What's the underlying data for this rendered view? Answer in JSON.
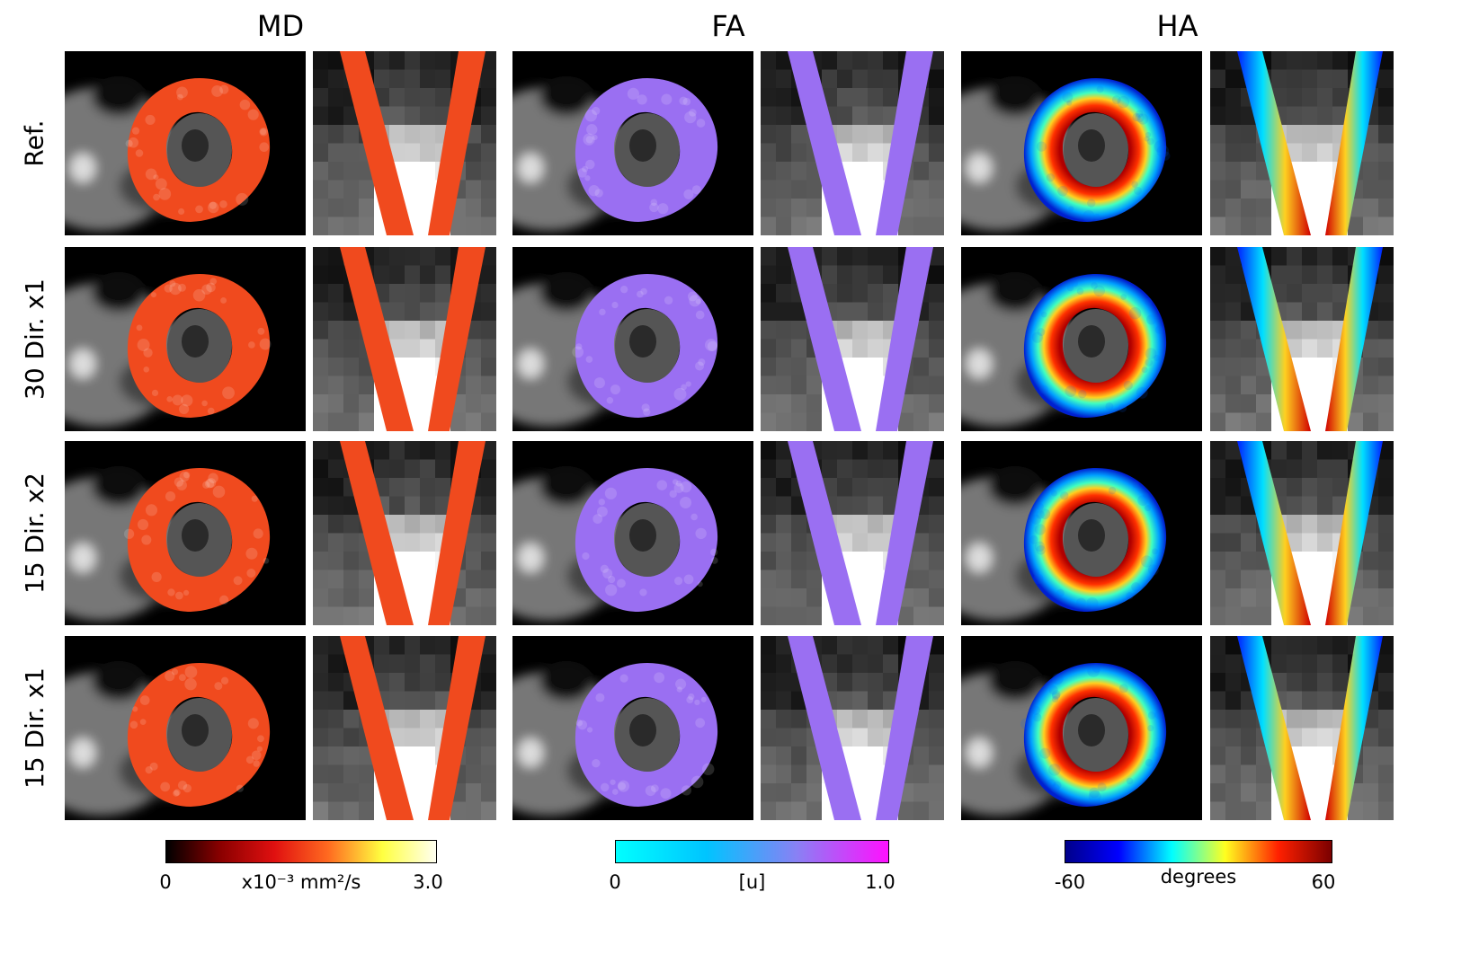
{
  "columns": [
    {
      "title": "MD",
      "ring_color": "#f04a1e",
      "cmap": "hot"
    },
    {
      "title": "FA",
      "ring_color": "#9a6ff2",
      "cmap": "cool"
    },
    {
      "title": "HA",
      "ring_color": "jet",
      "cmap": "jet"
    }
  ],
  "rows": [
    {
      "label": "Ref."
    },
    {
      "label": "30 Dir. x1"
    },
    {
      "label": "15 Dir. x2"
    },
    {
      "label": "15 Dir. x1"
    }
  ],
  "colorbars": [
    {
      "min": "0",
      "max": "3.0",
      "unit": "x10⁻³ mm²/s",
      "stops": [
        "#000000",
        "#8a0000",
        "#e01010",
        "#ff6a20",
        "#ffff40",
        "#fffff0"
      ]
    },
    {
      "min": "0",
      "max": "1.0",
      "unit": "[u]",
      "stops": [
        "#00ffff",
        "#00c4ff",
        "#8a80f4",
        "#ff10ff"
      ]
    },
    {
      "min": "-60",
      "max": "60",
      "unit": "degrees",
      "stops": [
        "#00008a",
        "#0000ff",
        "#00ffff",
        "#ffff20",
        "#ff2000",
        "#7a0000"
      ]
    }
  ]
}
